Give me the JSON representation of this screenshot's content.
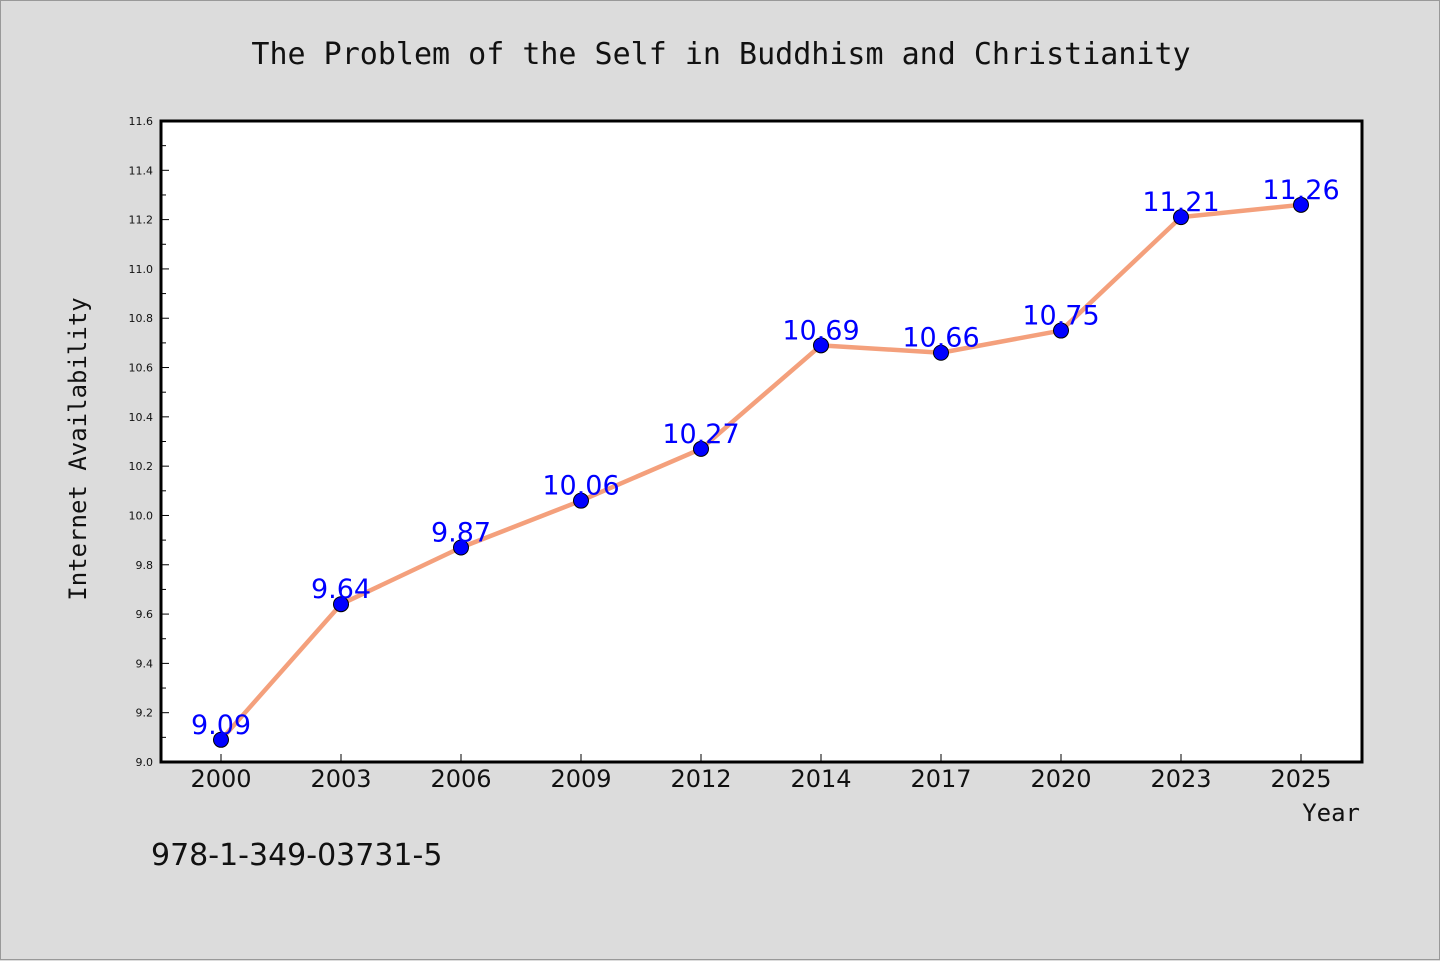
{
  "chart_data": {
    "type": "line",
    "title": "The Problem of the Self in Buddhism and Christianity",
    "xlabel": "Year",
    "ylabel": "Internet Availability",
    "categories": [
      "2000",
      "2003",
      "2006",
      "2009",
      "2012",
      "2014",
      "2017",
      "2020",
      "2023",
      "2025"
    ],
    "values": [
      9.09,
      9.64,
      9.87,
      10.06,
      10.27,
      10.69,
      10.66,
      10.75,
      11.21,
      11.26
    ],
    "data_labels": [
      "9.09",
      "9.64",
      "9.87",
      "10.06",
      "10.27",
      "10.69",
      "10.66",
      "10.75",
      "11.21",
      "11.26"
    ],
    "ylim": [
      9.0,
      11.6
    ],
    "yticks": [
      "9.0",
      "9.2",
      "9.4",
      "9.6",
      "9.8",
      "10.0",
      "10.2",
      "10.4",
      "10.6",
      "10.8",
      "11.0",
      "11.2",
      "11.4",
      "11.6"
    ],
    "grid": false,
    "colors": {
      "line": "#f4a07c",
      "marker": "#0000ff",
      "data_label": "#0000ff",
      "background": "#dcdcdc",
      "plot_area": "#ffffff"
    }
  },
  "footer": {
    "isbn": "978-1-349-03731-5"
  }
}
